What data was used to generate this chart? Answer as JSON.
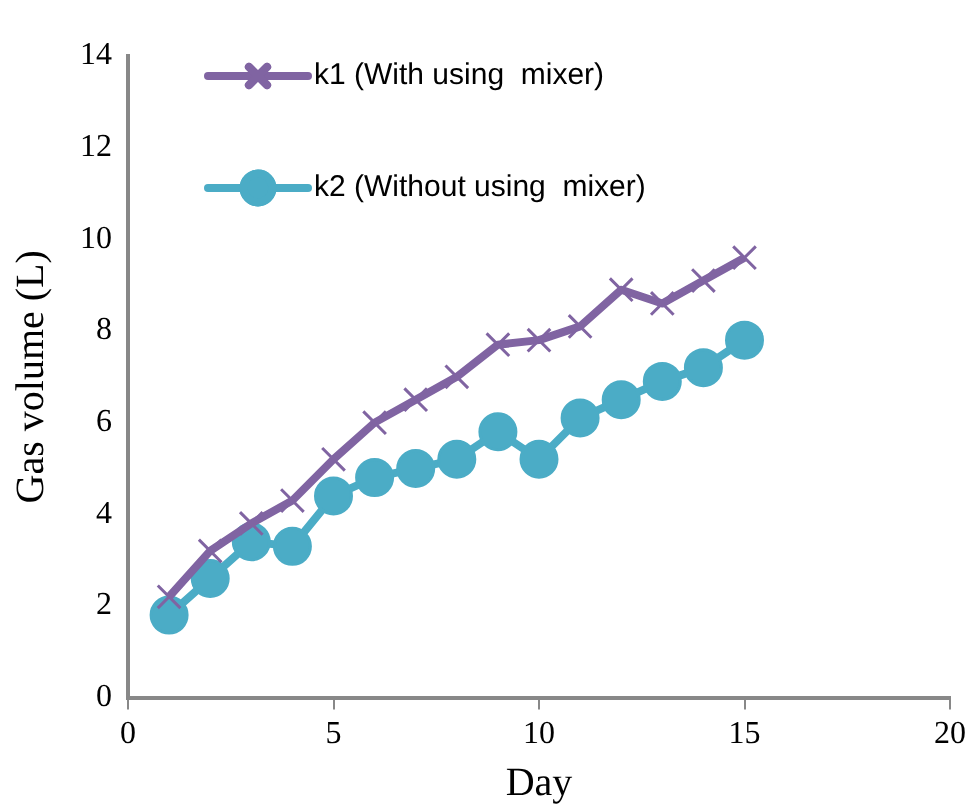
{
  "chart_data": {
    "type": "line",
    "xlabel": "Day",
    "ylabel": "Gas volume (L)",
    "x": [
      1,
      2,
      3,
      4,
      5,
      6,
      7,
      8,
      9,
      10,
      11,
      12,
      13,
      14,
      15
    ],
    "series": [
      {
        "name": "k1 (With using  mixer)",
        "color": "#8064a2",
        "marker": "cross",
        "values": [
          2.2,
          3.2,
          3.8,
          4.3,
          5.2,
          6.0,
          6.5,
          7.0,
          7.7,
          7.8,
          8.1,
          8.9,
          8.6,
          9.1,
          9.6
        ]
      },
      {
        "name": "k2 (Without using  mixer)",
        "color": "#4bacc6",
        "marker": "circle",
        "values": [
          1.8,
          2.6,
          3.4,
          3.3,
          4.4,
          4.8,
          5.0,
          5.2,
          5.8,
          5.2,
          6.1,
          6.5,
          6.9,
          7.2,
          7.8
        ]
      }
    ],
    "xlim": [
      0,
      20
    ],
    "xticks": [
      0,
      5,
      10,
      15,
      20
    ],
    "ylim": [
      0,
      14
    ],
    "yticks": [
      0,
      2,
      4,
      6,
      8,
      10,
      12,
      14
    ],
    "grid": false,
    "legend": "top"
  }
}
